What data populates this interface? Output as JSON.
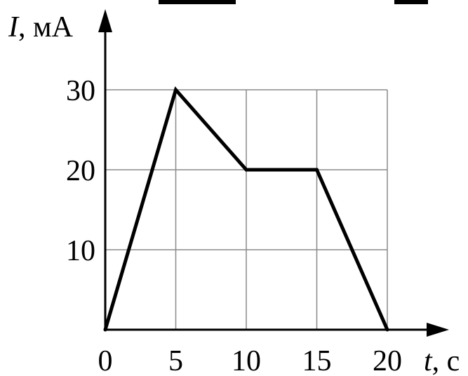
{
  "chart_data": {
    "type": "line",
    "x": [
      0,
      5,
      10,
      15,
      20
    ],
    "series": [
      {
        "values": [
          0,
          30,
          20,
          20,
          0
        ]
      }
    ],
    "x_ticks": [
      "0",
      "5",
      "10",
      "15",
      "20"
    ],
    "y_ticks": [
      "10",
      "20",
      "30"
    ],
    "xlabel_symbol": "t",
    "xlabel_unit": ", с",
    "ylabel_symbol": "I",
    "ylabel_unit": ", мА",
    "xlim": [
      0,
      20
    ],
    "ylim": [
      0,
      30
    ],
    "grid": true
  },
  "colors": {
    "line": "#000000",
    "grid": "#8a8a8a"
  }
}
